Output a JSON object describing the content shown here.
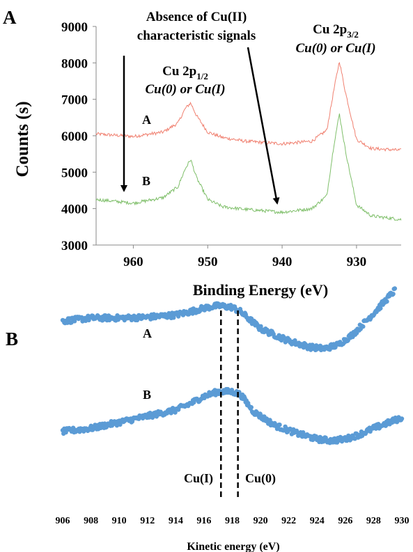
{
  "panels": [
    {
      "panel_label": "A",
      "annotations": {
        "absence_line1": "Absence of Cu(II)",
        "absence_line2": "characteristic signals",
        "p12_name": "Cu 2p",
        "p12_sub": "1/2",
        "p12_state": "Cu(0) or Cu(I)",
        "p32_name": "Cu 2p",
        "p32_sub": "3/2",
        "p32_state": "Cu(0) or Cu(I)"
      }
    },
    {
      "panel_label": "B",
      "annotations": {
        "cu1": "Cu(I)",
        "cu0": "Cu(0)"
      }
    }
  ],
  "chart_data": [
    {
      "type": "line",
      "xlabel": "Binding Energy (eV)",
      "ylabel": "Counts (s)",
      "xlim": [
        965,
        924
      ],
      "ylim": [
        3000,
        9000
      ],
      "x_reversed": true,
      "x_ticks": [
        "960",
        "950",
        "940",
        "930"
      ],
      "y_ticks": [
        "3000",
        "4000",
        "5000",
        "6000",
        "7000",
        "8000",
        "9000"
      ],
      "series": [
        {
          "name": "A",
          "color": "#f08070",
          "x": [
            965,
            960,
            956,
            954,
            953,
            952.3,
            951.5,
            950,
            948,
            945,
            940,
            936,
            934,
            933,
            932.3,
            931.5,
            930,
            928,
            924
          ],
          "y": [
            6050,
            5980,
            6100,
            6350,
            6750,
            6900,
            6550,
            6100,
            5950,
            5850,
            5780,
            5850,
            6150,
            7300,
            8050,
            7200,
            5900,
            5650,
            5600
          ]
        },
        {
          "name": "B",
          "color": "#7fbf6a",
          "x": [
            965,
            960,
            956,
            954,
            953,
            952.3,
            951.5,
            950,
            948,
            945,
            940,
            936,
            934,
            933,
            932.3,
            931.5,
            930,
            928,
            924
          ],
          "y": [
            4250,
            4150,
            4300,
            4600,
            5100,
            5350,
            4850,
            4250,
            4050,
            3980,
            3900,
            4000,
            4350,
            5800,
            6600,
            5600,
            4100,
            3800,
            3700
          ]
        }
      ]
    },
    {
      "type": "scatter",
      "xlabel": "Kinetic energy (eV)",
      "xlim": [
        906,
        930
      ],
      "x_ticks": [
        "906",
        "908",
        "910",
        "912",
        "914",
        "916",
        "918",
        "920",
        "922",
        "924",
        "926",
        "928",
        "930"
      ],
      "marker_color": "#5b9bd5",
      "vlines": [
        {
          "x": 917.2,
          "label": "Cu(I)"
        },
        {
          "x": 918.4,
          "label": "Cu(0)"
        }
      ],
      "series": [
        {
          "name": "A",
          "x": [
            906,
            908,
            910,
            912,
            914,
            915,
            916,
            917,
            918,
            918.6,
            920,
            922,
            923.5,
            924.5,
            925.5,
            926.5,
            928,
            929.5
          ],
          "y": [
            0.28,
            0.32,
            0.32,
            0.33,
            0.36,
            0.4,
            0.45,
            0.48,
            0.46,
            0.4,
            0.18,
            0.02,
            -0.06,
            -0.08,
            -0.03,
            0.1,
            0.38,
            0.68
          ]
        },
        {
          "name": "B",
          "x": [
            906,
            908,
            910,
            912,
            914,
            915,
            916,
            917,
            918,
            918.6,
            919.5,
            921,
            922.5,
            924,
            925,
            926,
            927,
            928,
            930
          ],
          "y": [
            -0.38,
            -0.34,
            -0.26,
            -0.18,
            -0.1,
            -0.02,
            0.08,
            0.14,
            0.14,
            0.1,
            -0.12,
            -0.3,
            -0.4,
            -0.48,
            -0.5,
            -0.48,
            -0.42,
            -0.34,
            -0.2
          ]
        }
      ]
    }
  ]
}
